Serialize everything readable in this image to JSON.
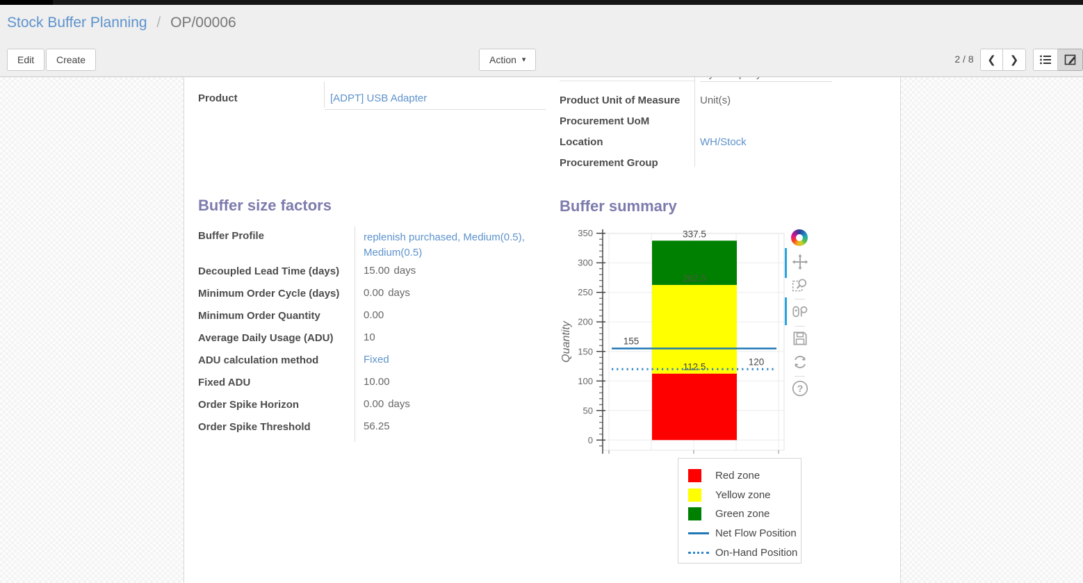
{
  "breadcrumb": {
    "parent": "Stock Buffer Planning",
    "separator": "/",
    "current": "OP/00006"
  },
  "toolbar": {
    "edit": "Edit",
    "create": "Create",
    "action": "Action",
    "pager": "2 / 8"
  },
  "icons": {
    "action-caret": "▾",
    "pager-prev": "❮",
    "pager-next": "❯",
    "help": "?"
  },
  "form": {
    "clipped_row": {
      "value": "My Company"
    },
    "product_field": {
      "label": "Product",
      "value": "[ADPT] USB Adapter",
      "link": true
    },
    "right_fields": [
      {
        "label": "Product Unit of Measure",
        "value": "Unit(s)",
        "link": false
      },
      {
        "label": "Procurement UoM",
        "value": "",
        "link": false
      },
      {
        "label": "Location",
        "value": "WH/Stock",
        "link": true
      },
      {
        "label": "Procurement Group",
        "value": "",
        "link": false
      }
    ],
    "buffer_factors": {
      "title": "Buffer size factors",
      "fields": [
        {
          "label": "Buffer Profile",
          "value": "replenish purchased, Medium(0.5), Medium(0.5)",
          "link": true,
          "tall": true
        },
        {
          "label": "Decoupled Lead Time (days)",
          "value": "15.00",
          "suffix": "days"
        },
        {
          "label": "Minimum Order Cycle (days)",
          "value": "0.00",
          "suffix": "days"
        },
        {
          "label": "Minimum Order Quantity",
          "value": "0.00"
        },
        {
          "label": "Average Daily Usage (ADU)",
          "value": "10"
        },
        {
          "label": "ADU calculation method",
          "value": "Fixed",
          "link": true
        },
        {
          "label": "Fixed ADU",
          "value": "10.00"
        },
        {
          "label": "Order Spike Horizon",
          "value": "0.00",
          "suffix": "days"
        },
        {
          "label": "Order Spike Threshold",
          "value": "56.25"
        }
      ]
    },
    "buffer_summary": {
      "title": "Buffer summary"
    }
  },
  "chart_data": {
    "type": "bar",
    "title": "Buffer summary",
    "xlabel": "",
    "ylabel": "Quantity",
    "ylim": [
      0,
      350
    ],
    "yticks": [
      0,
      50,
      100,
      150,
      200,
      250,
      300,
      350
    ],
    "minor_tick_step": 10,
    "grid": true,
    "zones": [
      {
        "name": "Red zone",
        "from": 0,
        "to": 112.5,
        "color": "#ff0000",
        "label": "112.5"
      },
      {
        "name": "Yellow zone",
        "from": 112.5,
        "to": 262.5,
        "color": "#ffff00",
        "label": "262.5"
      },
      {
        "name": "Green zone",
        "from": 262.5,
        "to": 337.5,
        "color": "#008000",
        "label": "337.5"
      }
    ],
    "lines": [
      {
        "name": "Net Flow Position",
        "value": 155,
        "label": "155",
        "style": "solid",
        "color": "#1f77b4"
      },
      {
        "name": "On-Hand Position",
        "value": 120,
        "label": "120",
        "style": "dotted",
        "color": "#2e86c8"
      }
    ],
    "legend": [
      "Red zone",
      "Yellow zone",
      "Green zone",
      "Net Flow Position",
      "On-Hand Position"
    ],
    "legend_position": "bottom-right"
  },
  "modebar": [
    "plotly-logo",
    "pan",
    "box-zoom",
    "hover-compare",
    "save",
    "reset-axes",
    "help"
  ]
}
